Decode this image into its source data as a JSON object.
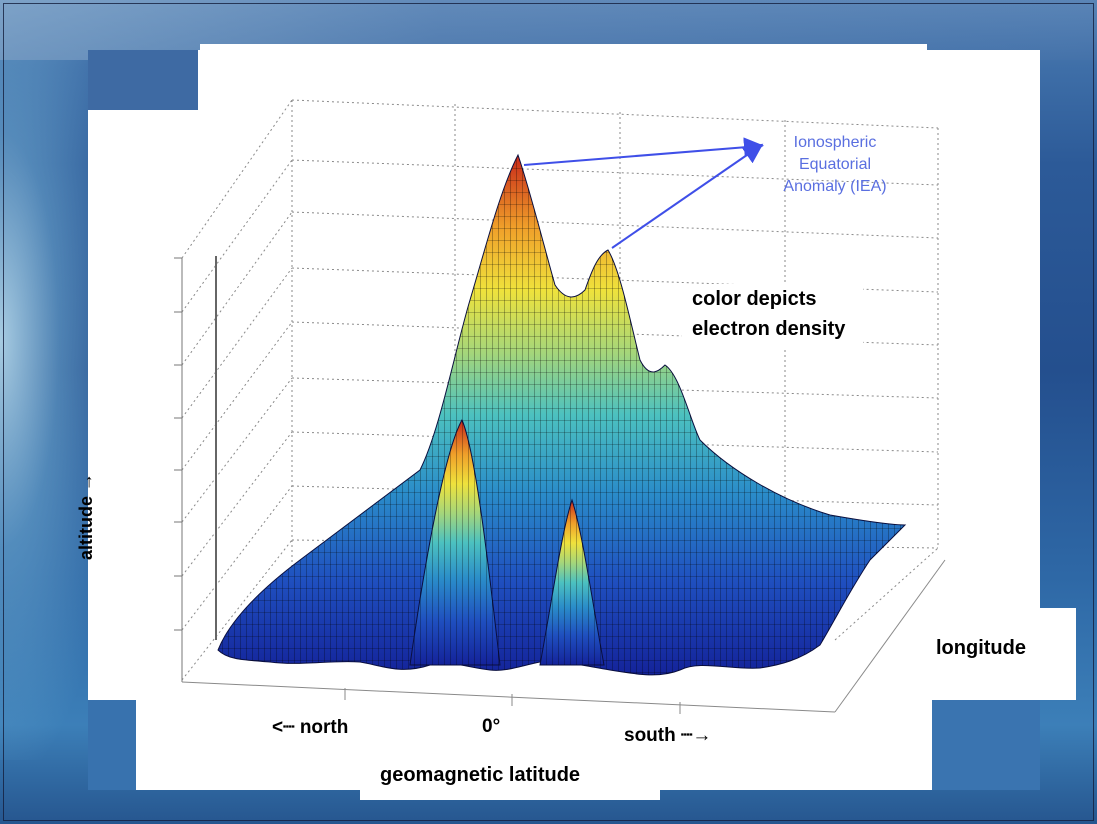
{
  "annotation": {
    "iea_lines": [
      "Ionospheric",
      "Equatorial",
      "Anomaly (IEA)"
    ]
  },
  "note": {
    "lines": [
      "color depicts",
      "electron density"
    ]
  },
  "axes": {
    "altitude": "altitude →",
    "longitude": "longitude",
    "latitude_title": "geomagnetic latitude",
    "north": "<┈ north",
    "zero": "0°",
    "south": "south ┈→"
  },
  "colors": {
    "annotation": "#5a6fe0",
    "surface_low": "#1b2fa8",
    "surface_mid": "#29a7c9",
    "surface_high": "#f0e03a",
    "surface_peak": "#d8401c"
  }
}
